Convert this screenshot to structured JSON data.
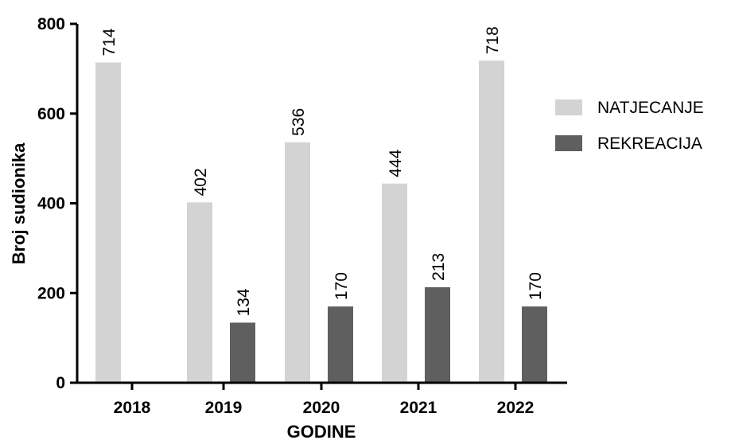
{
  "chart_data": {
    "type": "bar",
    "categories": [
      "2018",
      "2019",
      "2020",
      "2021",
      "2022"
    ],
    "series": [
      {
        "name": "NATJECANJE",
        "values": [
          714,
          402,
          536,
          444,
          718
        ],
        "color": "#d3d3d3"
      },
      {
        "name": "REKREACIJA",
        "values": [
          null,
          134,
          170,
          213,
          170
        ],
        "color": "#5f5f5f"
      }
    ],
    "data_labels": [
      [
        "714",
        "402",
        "536",
        "444",
        "718"
      ],
      [
        "",
        "134",
        "170",
        "213",
        "170"
      ]
    ],
    "title": "",
    "xlabel": "GODINE",
    "ylabel": "Broj sudionika",
    "ylim": [
      0,
      800
    ],
    "yticks": [
      "0",
      "200",
      "400",
      "600",
      "800"
    ],
    "grid": false,
    "legend": "right"
  }
}
